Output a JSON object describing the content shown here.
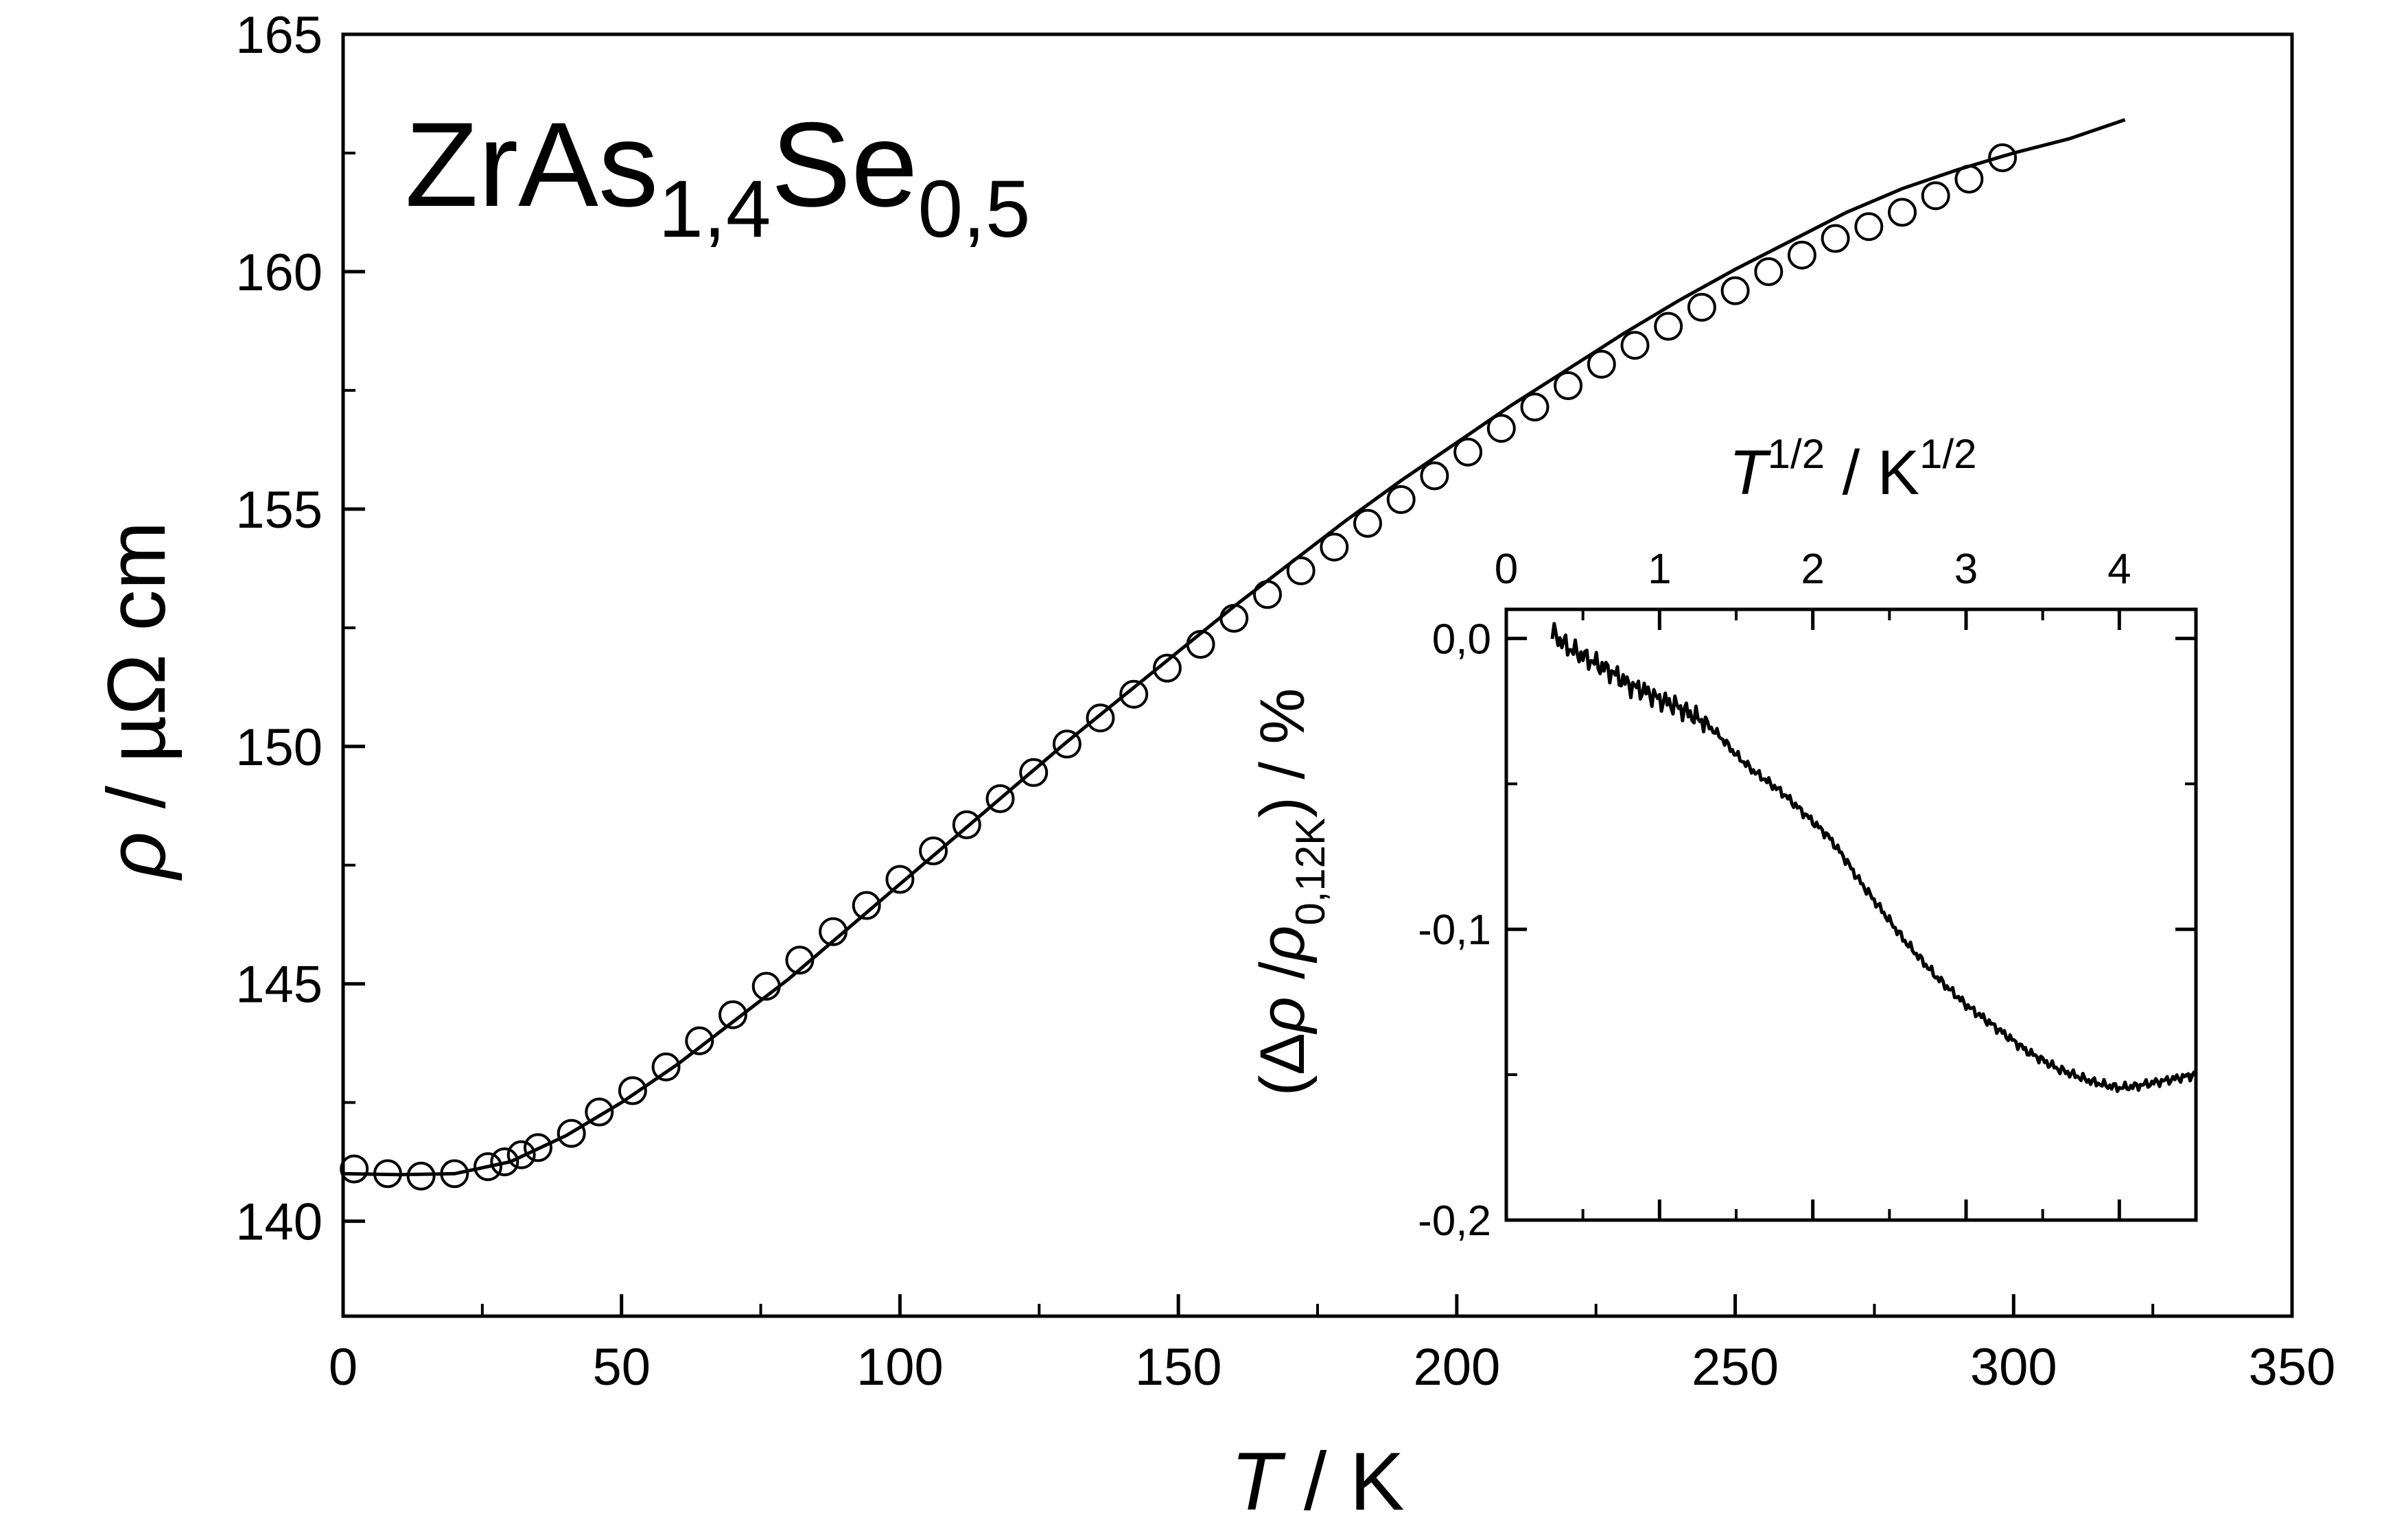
{
  "chart_data": {
    "type": "scatter",
    "annotation": {
      "base1": "ZrAs",
      "sub1": "1,4",
      "base2": "Se",
      "sub2": "0,5"
    },
    "main": {
      "xlabel": {
        "italic": "T",
        "rest": " / K"
      },
      "ylabel": {
        "italic": "ρ",
        "rest": " / µΩ cm"
      },
      "xlim": [
        0,
        350
      ],
      "ylim": [
        138,
        165
      ],
      "xticks": [
        "0",
        "50",
        "100",
        "150",
        "200",
        "250",
        "300",
        "350"
      ],
      "yticks": [
        "140",
        "145",
        "150",
        "155",
        "160",
        "165"
      ],
      "series": [
        {
          "type": "scatter",
          "marker": "open-circle",
          "x": [
            2,
            8,
            14,
            20,
            26,
            29,
            32,
            35,
            41,
            46,
            52,
            58,
            64,
            70,
            76,
            82,
            88,
            94,
            100,
            106,
            112,
            118,
            124,
            130,
            136,
            142,
            148,
            154,
            160,
            166,
            172,
            178,
            184,
            190,
            196,
            202,
            208,
            214,
            220,
            226,
            232,
            238,
            244,
            250,
            256,
            262,
            268,
            274,
            280,
            286,
            292,
            298
          ],
          "y": [
            141.1,
            141.0,
            140.95,
            141.0,
            141.15,
            141.25,
            141.4,
            141.55,
            141.85,
            142.3,
            142.75,
            143.25,
            143.8,
            144.35,
            144.95,
            145.5,
            146.1,
            146.65,
            147.2,
            147.8,
            148.35,
            148.9,
            149.45,
            150.05,
            150.6,
            151.1,
            151.65,
            152.15,
            152.7,
            153.2,
            153.7,
            154.2,
            154.7,
            155.2,
            155.7,
            156.2,
            156.7,
            157.15,
            157.6,
            158.05,
            158.45,
            158.85,
            159.25,
            159.6,
            160.0,
            160.35,
            160.7,
            160.95,
            161.25,
            161.6,
            161.95,
            162.4
          ]
        },
        {
          "type": "line",
          "x": [
            0,
            10,
            20,
            30,
            40,
            50,
            60,
            70,
            80,
            90,
            100,
            110,
            120,
            130,
            140,
            150,
            160,
            170,
            180,
            190,
            200,
            210,
            220,
            230,
            240,
            250,
            260,
            270,
            280,
            290,
            300,
            310,
            320
          ],
          "y": [
            141.0,
            140.98,
            141.0,
            141.25,
            141.8,
            142.5,
            143.3,
            144.2,
            145.1,
            146.1,
            147.1,
            148.1,
            149.1,
            150.1,
            151.05,
            152.0,
            152.95,
            153.85,
            154.75,
            155.6,
            156.4,
            157.2,
            157.95,
            158.7,
            159.4,
            160.05,
            160.65,
            161.25,
            161.75,
            162.15,
            162.5,
            162.8,
            163.2
          ]
        }
      ]
    },
    "inset": {
      "type": "line",
      "xlabel": {
        "italic": "T",
        "sup1": "1/2",
        "rest": " / K",
        "sup2": "1/2"
      },
      "ylabel": {
        "open": "(Δ",
        "rho1": "ρ",
        "slash": " /",
        "rho2": "ρ",
        "sub": "0,12K",
        "close": ") / %"
      },
      "xlim": [
        0,
        4.5
      ],
      "ylim": [
        -0.2,
        0.01
      ],
      "xticks": [
        "0",
        "1",
        "2",
        "3",
        "4"
      ],
      "yticks": [
        "0,0",
        "-0,1",
        "-0,2"
      ],
      "x": [
        0.3,
        0.4,
        0.5,
        0.6,
        0.7,
        0.8,
        0.9,
        1.0,
        1.1,
        1.2,
        1.3,
        1.4,
        1.5,
        1.6,
        1.7,
        1.8,
        1.9,
        2.0,
        2.1,
        2.2,
        2.3,
        2.4,
        2.5,
        2.6,
        2.7,
        2.8,
        2.9,
        3.0,
        3.1,
        3.2,
        3.3,
        3.4,
        3.5,
        3.6,
        3.7,
        3.8,
        3.9,
        4.0,
        4.1,
        4.2,
        4.3,
        4.4,
        4.5
      ],
      "y": [
        0.002,
        -0.003,
        -0.006,
        -0.009,
        -0.012,
        -0.016,
        -0.018,
        -0.021,
        -0.023,
        -0.026,
        -0.029,
        -0.034,
        -0.04,
        -0.045,
        -0.049,
        -0.053,
        -0.058,
        -0.063,
        -0.068,
        -0.075,
        -0.083,
        -0.09,
        -0.097,
        -0.104,
        -0.11,
        -0.116,
        -0.121,
        -0.126,
        -0.13,
        -0.134,
        -0.138,
        -0.142,
        -0.145,
        -0.148,
        -0.15,
        -0.152,
        -0.1535,
        -0.1545,
        -0.154,
        -0.153,
        -0.152,
        -0.151,
        -0.15
      ]
    }
  }
}
